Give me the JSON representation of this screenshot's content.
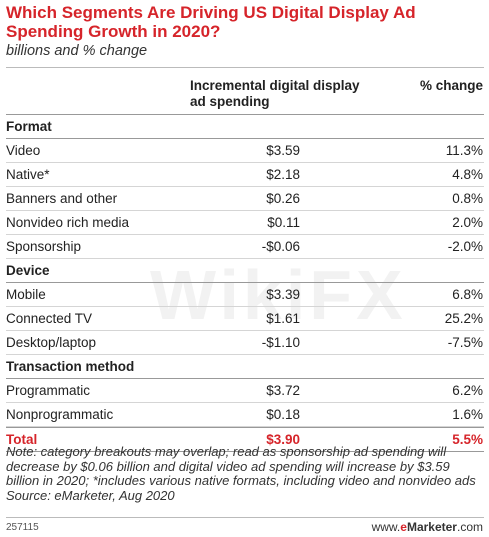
{
  "title": "Which Segments Are Driving US Digital Display Ad Spending Growth in 2020?",
  "subtitle": "billions and % change",
  "columns": {
    "amount": "Incremental digital display ad spending",
    "change": "% change"
  },
  "chart_data": {
    "type": "table",
    "sections": [
      {
        "name": "Format",
        "rows": [
          {
            "label": "Video",
            "amount": "$3.59",
            "change": "11.3%"
          },
          {
            "label": "Native*",
            "amount": "$2.18",
            "change": "4.8%"
          },
          {
            "label": "Banners and other",
            "amount": "$0.26",
            "change": "0.8%"
          },
          {
            "label": "Nonvideo rich media",
            "amount": "$0.11",
            "change": "2.0%"
          },
          {
            "label": "Sponsorship",
            "amount": "-$0.06",
            "change": "-2.0%"
          }
        ]
      },
      {
        "name": "Device",
        "rows": [
          {
            "label": "Mobile",
            "amount": "$3.39",
            "change": "6.8%"
          },
          {
            "label": "Connected TV",
            "amount": "$1.61",
            "change": "25.2%"
          },
          {
            "label": "Desktop/laptop",
            "amount": "-$1.10",
            "change": "-7.5%"
          }
        ]
      },
      {
        "name": "Transaction method",
        "rows": [
          {
            "label": "Programmatic",
            "amount": "$3.72",
            "change": "6.2%"
          },
          {
            "label": "Nonprogrammatic",
            "amount": "$0.18",
            "change": "1.6%"
          }
        ]
      }
    ],
    "total": {
      "label": "Total",
      "amount": "$3.90",
      "change": "5.5%"
    }
  },
  "note": "Note: category breakouts may overlap; read as sponsorship ad spending will decrease by $0.06 billion and digital video ad spending will increase by $3.59 billion in 2020; *includes various native formats, including video and nonvideo ads",
  "source": "Source: eMarketer, Aug 2020",
  "footer": {
    "id": "257115",
    "brand_prefix": "www.",
    "brand_e": "e",
    "brand_rest": "Marketer",
    "brand_suffix": ".com"
  },
  "watermark": "WikiFX",
  "colors": {
    "accent": "#d6242a"
  }
}
